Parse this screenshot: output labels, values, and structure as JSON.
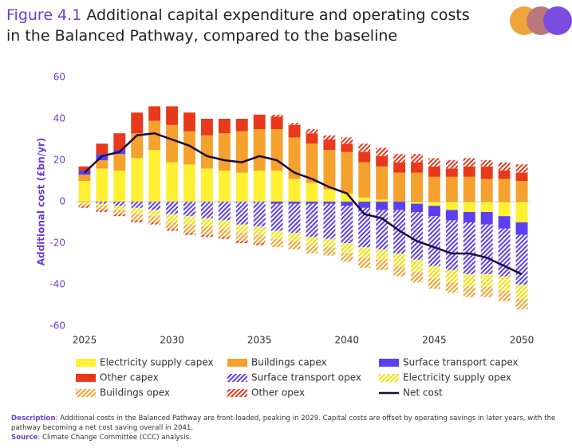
{
  "chart_data": {
    "type": "bar",
    "figure_label": "Figure 4.1",
    "title": "Additional capital expenditure and operating costs in the Balanced Pathway, compared to the baseline",
    "y_label": "Additional cost (£bn/yr)",
    "x": [
      2025,
      2026,
      2027,
      2028,
      2029,
      2030,
      2031,
      2032,
      2033,
      2034,
      2035,
      2036,
      2037,
      2038,
      2039,
      2040,
      2041,
      2042,
      2043,
      2044,
      2045,
      2046,
      2047,
      2048,
      2049,
      2050
    ],
    "xlim": [
      2024.5,
      2050.5
    ],
    "xticks": [
      2025,
      2030,
      2035,
      2040,
      2045,
      2050
    ],
    "ylim": [
      -60,
      60
    ],
    "yticks": [
      -60,
      -40,
      -20,
      0,
      20,
      40,
      60
    ],
    "series": [
      {
        "name": "Electricity supply capex",
        "color": "#fff033",
        "style": "solid",
        "values": [
          10,
          16,
          15,
          21,
          25,
          19,
          18,
          16,
          15,
          14,
          15,
          15,
          11,
          9,
          6,
          4,
          2,
          1,
          0,
          -1,
          -2,
          -4,
          -5,
          -5,
          -7,
          -10
        ]
      },
      {
        "name": "Buildings capex",
        "color": "#f4a12e",
        "style": "solid",
        "values": [
          3,
          4,
          8,
          12,
          14,
          18,
          16,
          16,
          18,
          20,
          20,
          20,
          20,
          19,
          19,
          20,
          17,
          16,
          14,
          14,
          12,
          12,
          12,
          11,
          11,
          10
        ]
      },
      {
        "name": "Surface transport capex",
        "color": "#5b3ff0",
        "style": "solid",
        "values": [
          2,
          3,
          2,
          0,
          0,
          0,
          0,
          0,
          0,
          0,
          0,
          -1,
          -1,
          -1,
          -1,
          -2,
          -3,
          -4,
          -4,
          -4,
          -5,
          -5,
          -5,
          -6,
          -6,
          -6
        ]
      },
      {
        "name": "Other capex",
        "color": "#e8391c",
        "style": "solid",
        "values": [
          2,
          5,
          8,
          10,
          7,
          9,
          9,
          8,
          7,
          6,
          7,
          6,
          6,
          5,
          5,
          4,
          5,
          5,
          5,
          5,
          5,
          4,
          5,
          6,
          4,
          4
        ]
      },
      {
        "name": "Surface transport opex",
        "color": "#5b3ff0",
        "style": "hatched",
        "values": [
          0,
          -1,
          -2,
          -3,
          -4,
          -6,
          -7,
          -8,
          -9,
          -11,
          -12,
          -13,
          -14,
          -16,
          -17,
          -18,
          -19,
          -19,
          -21,
          -23,
          -24,
          -24,
          -25,
          -24,
          -23,
          -24
        ]
      },
      {
        "name": "Electricity supply opex",
        "color": "#f5e000",
        "style": "hatched",
        "values": [
          -1,
          -1,
          -2,
          -3,
          -3,
          -4,
          -4,
          -4,
          -4,
          -4,
          -4,
          -4,
          -4,
          -4,
          -4,
          -5,
          -5,
          -5,
          -6,
          -6,
          -6,
          -6,
          -6,
          -6,
          -7,
          -7
        ]
      },
      {
        "name": "Buildings opex",
        "color": "#f4a12e",
        "style": "hatched",
        "values": [
          -1,
          -2,
          -2,
          -3,
          -3,
          -3,
          -4,
          -4,
          -4,
          -4,
          -4,
          -4,
          -4,
          -4,
          -4,
          -4,
          -5,
          -5,
          -5,
          -5,
          -5,
          -5,
          -5,
          -5,
          -5,
          -5
        ]
      },
      {
        "name": "Other opex",
        "color": "#e8391c",
        "style": "hatched",
        "values": [
          -1,
          -1,
          -1,
          -1,
          -1,
          -1,
          -1,
          -1,
          -1,
          -1,
          -1,
          1,
          1,
          2,
          2,
          3,
          4,
          4,
          4,
          4,
          4,
          4,
          4,
          3,
          4,
          4
        ]
      },
      {
        "name": "Net cost",
        "color": "#1d0a33",
        "style": "line",
        "values": [
          14,
          22,
          24,
          32,
          33,
          30,
          27,
          22,
          20,
          19,
          22,
          20,
          14,
          11,
          7,
          4,
          -6,
          -8,
          -14,
          -19,
          -22,
          -25,
          -25,
          -27,
          -31,
          -35
        ]
      }
    ],
    "description_label": "Description",
    "description": ": Additional costs in the Balanced Pathway are front-loaded, peaking in 2029. Capital costs are offset by operating savings in later years, with the pathway becoming a net cost saving overall in 2041.",
    "source_label": "Source",
    "source": ": Climate Change Committee (CCC) analysis."
  }
}
